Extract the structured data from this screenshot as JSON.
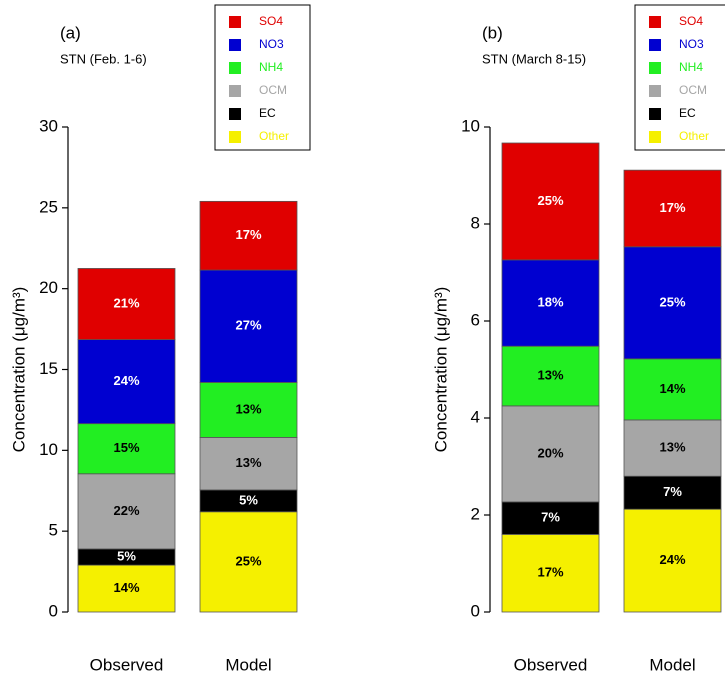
{
  "chart_data": [
    {
      "type": "bar",
      "stacked": true,
      "title": "(a)",
      "subtitle": "STN (Feb. 1-6)",
      "y_label": "Concentration (μg/m³)",
      "categories": [
        "Observed",
        "Model"
      ],
      "ylim": [
        0,
        30
      ],
      "yticks": [
        0,
        5,
        10,
        15,
        20,
        25,
        30
      ],
      "series": [
        {
          "name": "SO4",
          "color": "#e00000",
          "values": [
            4.4,
            4.25
          ],
          "value_labels": [
            "21%",
            "17%"
          ]
        },
        {
          "name": "NO3",
          "color": "#0000d0",
          "values": [
            5.2,
            6.95
          ],
          "value_labels": [
            "24%",
            "27%"
          ]
        },
        {
          "name": "NH4",
          "color": "#22ee22",
          "values": [
            3.1,
            3.4
          ],
          "value_labels": [
            "15%",
            "13%"
          ]
        },
        {
          "name": "OCM",
          "color": "#a6a6a6",
          "values": [
            4.65,
            3.25
          ],
          "value_labels": [
            "22%",
            "13%"
          ]
        },
        {
          "name": "EC",
          "color": "#000000",
          "values": [
            1.0,
            1.35
          ],
          "value_labels": [
            "5%",
            "5%"
          ]
        },
        {
          "name": "Other",
          "color": "#f5f000",
          "values": [
            2.9,
            6.2
          ],
          "value_labels": [
            "14%",
            "25%"
          ]
        }
      ]
    },
    {
      "type": "bar",
      "stacked": true,
      "title": "(b)",
      "subtitle": "STN (March 8-15)",
      "y_label": "Concentration (μg/m³)",
      "categories": [
        "Observed",
        "Model"
      ],
      "ylim": [
        0,
        10
      ],
      "yticks": [
        0,
        2,
        4,
        6,
        8,
        10
      ],
      "series": [
        {
          "name": "SO4",
          "color": "#e00000",
          "values": [
            2.41,
            1.58
          ],
          "value_labels": [
            "25%",
            "17%"
          ]
        },
        {
          "name": "NO3",
          "color": "#0000d0",
          "values": [
            1.78,
            2.31
          ],
          "value_labels": [
            "18%",
            "25%"
          ]
        },
        {
          "name": "NH4",
          "color": "#22ee22",
          "values": [
            1.23,
            1.26
          ],
          "value_labels": [
            "13%",
            "14%"
          ]
        },
        {
          "name": "OCM",
          "color": "#a6a6a6",
          "values": [
            1.98,
            1.16
          ],
          "value_labels": [
            "20%",
            "13%"
          ]
        },
        {
          "name": "EC",
          "color": "#000000",
          "values": [
            0.67,
            0.68
          ],
          "value_labels": [
            "7%",
            "7%"
          ]
        },
        {
          "name": "Other",
          "color": "#f5f000",
          "values": [
            1.6,
            2.12
          ],
          "value_labels": [
            "17%",
            "24%"
          ]
        }
      ]
    }
  ]
}
